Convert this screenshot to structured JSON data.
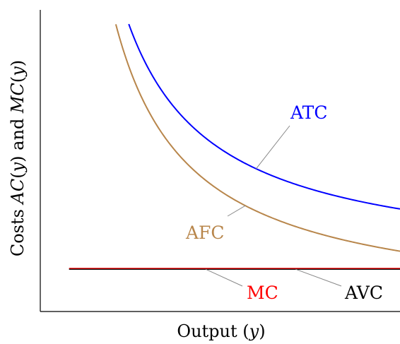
{
  "chart_data": {
    "type": "line",
    "title": "",
    "xlabel": "Output (y)",
    "ylabel": "Costs AC(y) and MC(y)",
    "xlim": [
      0,
      10
    ],
    "ylim": [
      0,
      10
    ],
    "grid": false,
    "legend": "none",
    "ticks": "none",
    "series": [
      {
        "name": "ATC",
        "color": "#0000ff",
        "fixed_cost": 20,
        "variable_cost": 1.4,
        "x_start": 2.46,
        "x_end": 10,
        "label_at_x": 6.0
      },
      {
        "name": "AFC",
        "color": "#b8864b",
        "fixed_cost": 20,
        "variable_cost": 0,
        "x_start": 2.1,
        "x_end": 10,
        "label_at_x": 5.7
      },
      {
        "name": "MC",
        "color": "#ff0000",
        "value": 1.4,
        "x_start": 0.8,
        "x_end": 10,
        "label_at_x": 4.6
      },
      {
        "name": "AVC",
        "color": "#000000",
        "value": 1.4,
        "x_start": 0.8,
        "x_end": 10,
        "label_at_x": 7.1
      }
    ]
  }
}
